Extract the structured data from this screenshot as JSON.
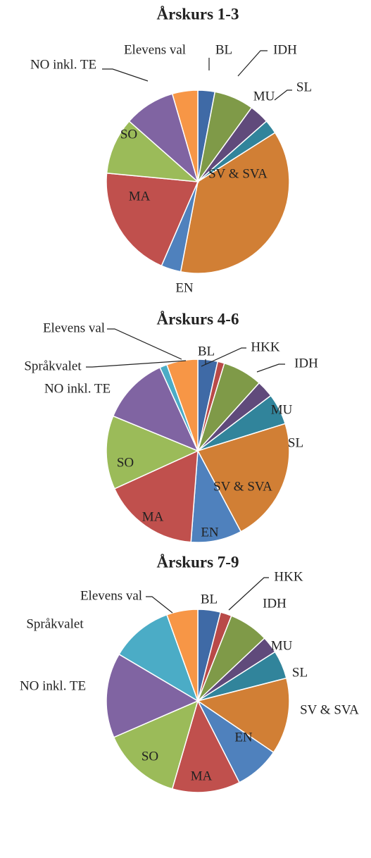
{
  "chart_data": [
    {
      "type": "pie",
      "title": "Årskurs 1-3",
      "categories": [
        "BL",
        "IDH",
        "MU",
        "SL",
        "SV & SVA",
        "EN",
        "MA",
        "SO",
        "NO inkl. TE",
        "Elevens val"
      ],
      "values": [
        3,
        7,
        3.5,
        2.5,
        37,
        3.5,
        20,
        10,
        9,
        4.5
      ],
      "colors": [
        "#3f6aa6",
        "#7f9a48",
        "#604a7b",
        "#31849b",
        "#d17f35",
        "#4f81bd",
        "#c0504d",
        "#9bbb59",
        "#8064a2",
        "#f79646"
      ]
    },
    {
      "type": "pie",
      "title": "Årskurs 4-6",
      "categories": [
        "BL",
        "HKK",
        "IDH",
        "MU",
        "SL",
        "SV & SVA",
        "EN",
        "MA",
        "SO",
        "NO inkl. TE",
        "Språkvalet",
        "Elevens val"
      ],
      "values": [
        3.5,
        1.2,
        7,
        3,
        5.5,
        22,
        9,
        17,
        13,
        12,
        1.3,
        5.5
      ],
      "colors": [
        "#3f6aa6",
        "#b94a48",
        "#7f9a48",
        "#604a7b",
        "#31849b",
        "#d17f35",
        "#4f81bd",
        "#c0504d",
        "#9bbb59",
        "#8064a2",
        "#4bacc6",
        "#f79646"
      ]
    },
    {
      "type": "pie",
      "title": "Årskurs 7-9",
      "categories": [
        "BL",
        "HKK",
        "IDH",
        "MU",
        "SL",
        "SV & SVA",
        "EN",
        "MA",
        "SO",
        "NO inkl. TE",
        "Språkvalet",
        "Elevens val"
      ],
      "values": [
        4,
        2,
        7,
        3,
        5,
        13.5,
        8,
        12,
        14,
        15,
        11,
        5.5
      ],
      "colors": [
        "#3f6aa6",
        "#b94a48",
        "#7f9a48",
        "#604a7b",
        "#31849b",
        "#d17f35",
        "#4f81bd",
        "#c0504d",
        "#9bbb59",
        "#8064a2",
        "#4bacc6",
        "#f79646"
      ]
    }
  ]
}
